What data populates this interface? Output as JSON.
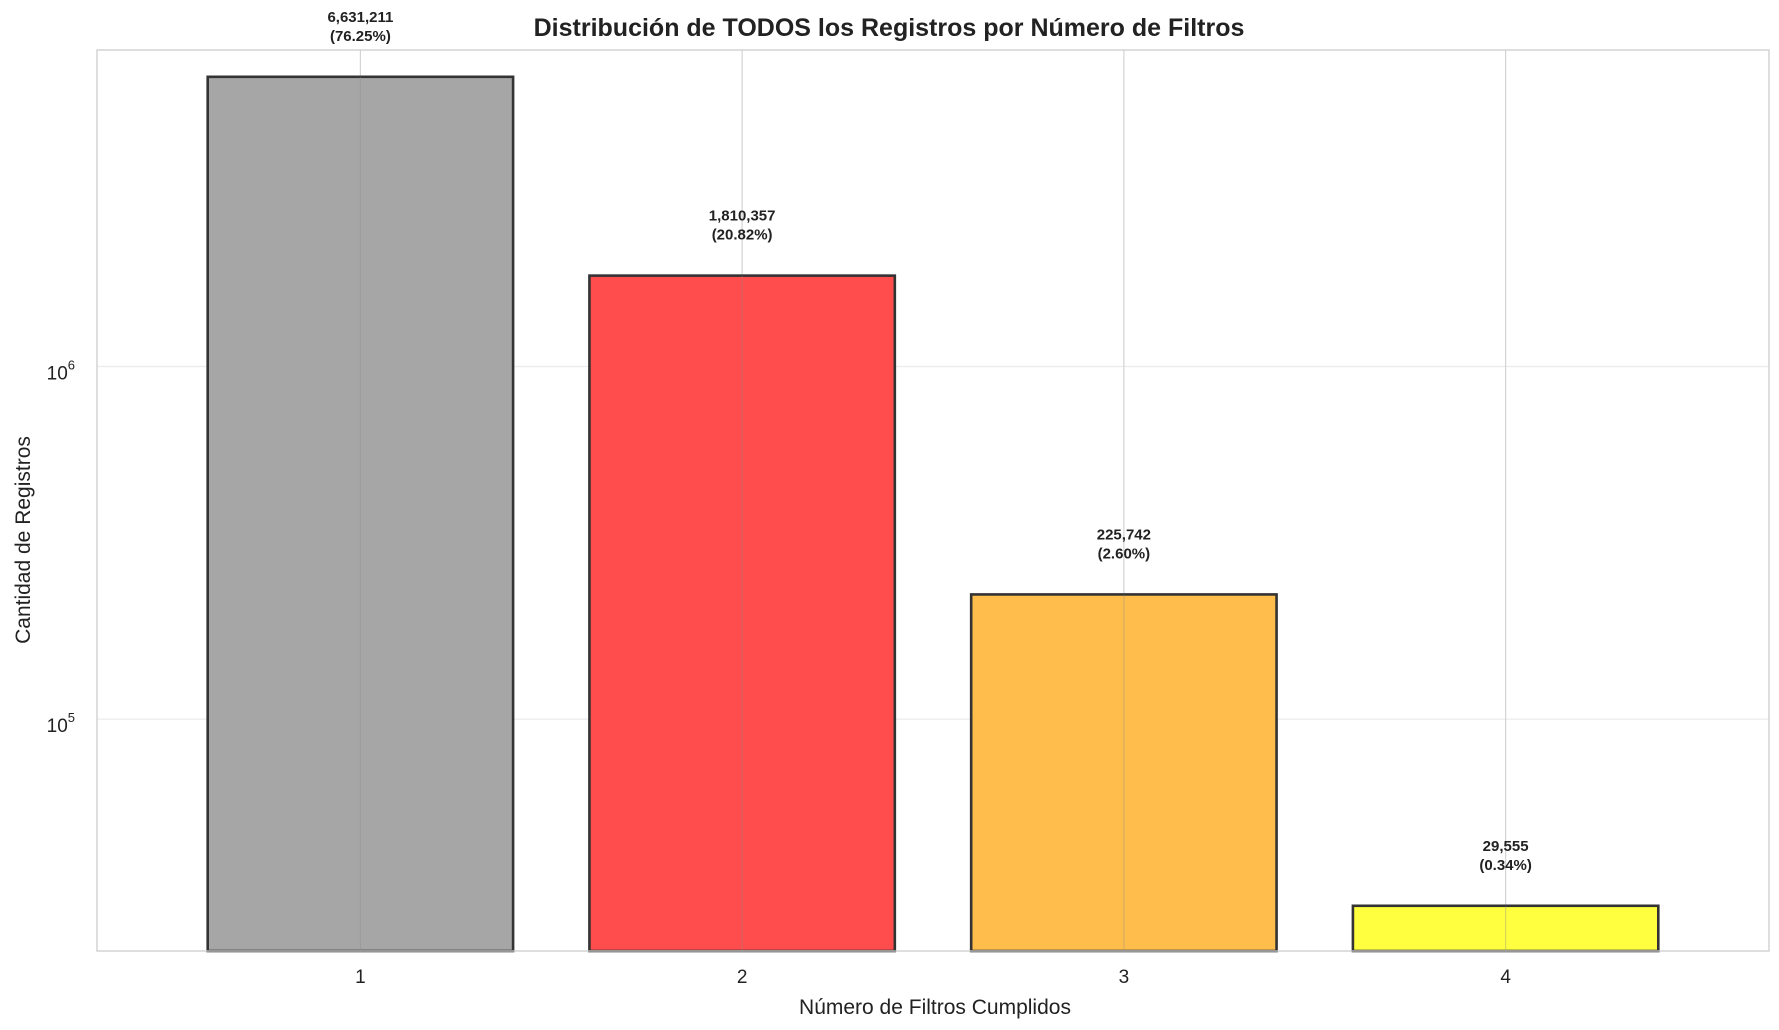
{
  "chart_data": {
    "type": "bar",
    "title": "Distribución de TODOS los Registros por Número de Filtros",
    "xlabel": "Número de Filtros Cumplidos",
    "ylabel": "Cantidad de Registros",
    "yscale": "log",
    "ylim": [
      22000,
      7900000
    ],
    "categories": [
      "1",
      "2",
      "3",
      "4"
    ],
    "values": [
      6631211,
      1810357,
      225742,
      29555
    ],
    "value_labels": [
      "6,631,211",
      "1,810,357",
      "225,742",
      "29,555"
    ],
    "percent_labels": [
      "(76.25%)",
      "(20.82%)",
      "(2.60%)",
      "(0.34%)"
    ],
    "colors": [
      "#a6a6a6",
      "#ff4c4c",
      "#ffbd4c",
      "#ffff3f"
    ],
    "y_ticks": [
      {
        "value": 100000,
        "base": "10",
        "exp": "5"
      },
      {
        "value": 1000000,
        "base": "10",
        "exp": "6"
      }
    ],
    "grid": true,
    "legend": "none"
  }
}
